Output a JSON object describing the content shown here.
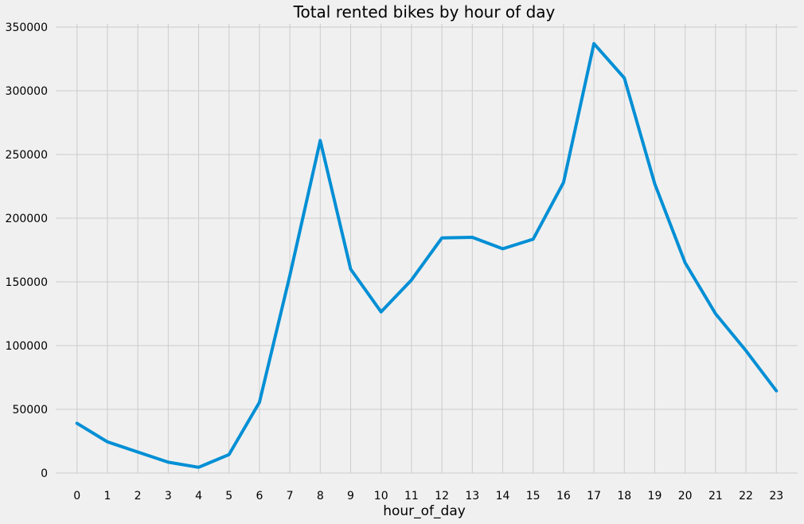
{
  "chart_data": {
    "type": "line",
    "title": "Total rented bikes by hour of day",
    "xlabel": "hour_of_day",
    "ylabel": "",
    "x": [
      0,
      1,
      2,
      3,
      4,
      5,
      6,
      7,
      8,
      9,
      10,
      11,
      12,
      13,
      14,
      15,
      16,
      17,
      18,
      19,
      20,
      21,
      22,
      23
    ],
    "x_tick_labels": [
      "0",
      "1",
      "2",
      "3",
      "4",
      "5",
      "6",
      "7",
      "8",
      "9",
      "10",
      "11",
      "12",
      "13",
      "14",
      "15",
      "16",
      "17",
      "18",
      "19",
      "20",
      "21",
      "22",
      "23"
    ],
    "series": [
      {
        "values": [
          39000,
          24500,
          16500,
          8500,
          4500,
          14500,
          55500,
          155000,
          261000,
          160000,
          126500,
          151500,
          184500,
          185000,
          176000,
          183500,
          228000,
          337000,
          310000,
          227000,
          165000,
          125000,
          96000,
          64500
        ],
        "color": "#008fd5"
      }
    ],
    "y_ticks": [
      0,
      50000,
      100000,
      150000,
      200000,
      250000,
      300000,
      350000
    ],
    "y_tick_labels": [
      "0",
      "50000",
      "100000",
      "150000",
      "200000",
      "250000",
      "300000",
      "350000"
    ],
    "ylim": [
      0,
      350000
    ],
    "xlim": [
      -0.7,
      23.7
    ],
    "grid": true,
    "legend": "none",
    "background": "#f0f0f0"
  }
}
